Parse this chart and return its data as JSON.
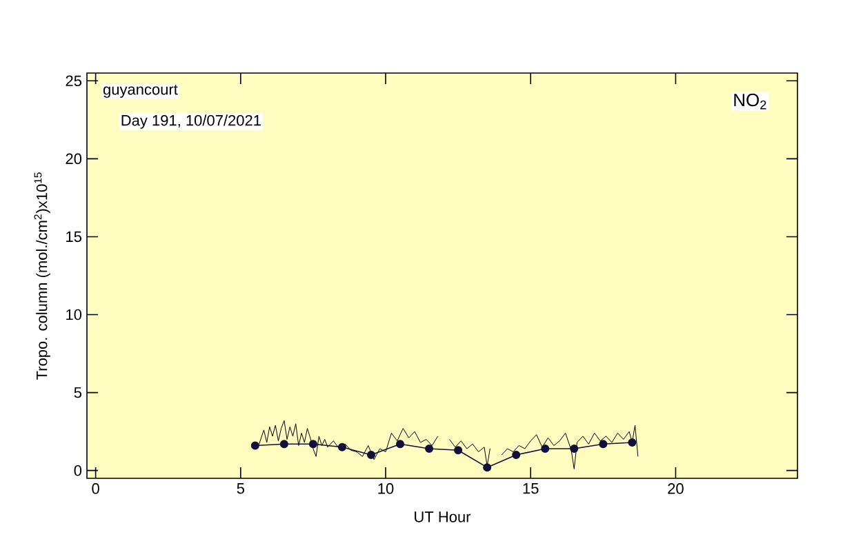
{
  "chart_data": {
    "type": "line",
    "xlabel": "UT Hour",
    "ylabel": "Tropo. column (mol./cm$^{2}$)x10$^{15}$",
    "annotations": [
      "guyancourt",
      "Day 191, 10/07/2021",
      "NO$_{2}$"
    ],
    "xlim": [
      -0.3,
      24.2
    ],
    "ylim": [
      -0.5,
      25.5
    ],
    "xticks": [
      0,
      5,
      10,
      15,
      20
    ],
    "yticks": [
      0,
      5,
      10,
      15,
      20,
      25
    ],
    "grid": false,
    "series": [
      {
        "color": "#000000",
        "marker": "none",
        "x": [
          5.6,
          5.8,
          5.9,
          6.0,
          6.1,
          6.2,
          6.3,
          6.4,
          6.5,
          6.6,
          6.7,
          6.8,
          6.9,
          7.0,
          7.1,
          7.2,
          7.3,
          7.4,
          7.5,
          7.6,
          7.7,
          7.8,
          7.9,
          8.0,
          8.2,
          8.4,
          8.6,
          8.8,
          9.0,
          9.2,
          9.4,
          9.6,
          9.8,
          10.0,
          10.2,
          10.4,
          10.6,
          10.8,
          11.0,
          11.2,
          11.4,
          11.6,
          11.8,
          11.9,
          12.2,
          12.4,
          12.6,
          12.8,
          13.0,
          13.2,
          13.4,
          13.5,
          13.6,
          13.9,
          14.0,
          14.2,
          14.4,
          14.6,
          14.8,
          15.0,
          15.2,
          15.4,
          15.6,
          15.8,
          16.0,
          16.2,
          16.4,
          16.5,
          16.6,
          16.8,
          17.0,
          17.2,
          17.4,
          17.6,
          17.8,
          18.0,
          18.2,
          18.4,
          18.5,
          18.6,
          18.7
        ],
        "values": [
          1.5,
          2.6,
          1.8,
          2.8,
          2.2,
          2.9,
          1.9,
          2.7,
          3.2,
          2.0,
          2.8,
          2.2,
          3.0,
          1.6,
          2.4,
          1.8,
          2.7,
          2.1,
          1.4,
          0.9,
          2.2,
          1.6,
          2.0,
          1.5,
          1.9,
          1.4,
          1.7,
          1.3,
          1.2,
          0.9,
          1.6,
          0.7,
          1.4,
          1.2,
          2.4,
          1.9,
          2.7,
          2.1,
          2.5,
          1.8,
          2.0,
          1.6,
          2.2,
          null,
          2.0,
          1.5,
          1.9,
          1.4,
          1.7,
          1.2,
          1.5,
          0.3,
          1.4,
          null,
          1.0,
          1.4,
          1.2,
          1.6,
          1.4,
          1.9,
          2.3,
          1.5,
          2.1,
          1.6,
          1.9,
          2.4,
          1.3,
          0.1,
          1.8,
          2.2,
          1.7,
          2.4,
          1.9,
          2.2,
          1.8,
          2.4,
          2.0,
          2.5,
          1.8,
          2.9,
          0.9
        ]
      },
      {
        "color": "#10103a",
        "marker": "circle",
        "x": [
          5.5,
          6.5,
          7.5,
          8.5,
          9.5,
          10.5,
          11.5,
          12.5,
          13.5,
          14.5,
          15.5,
          16.5,
          17.5,
          18.5
        ],
        "values": [
          1.6,
          1.7,
          1.7,
          1.5,
          1.0,
          1.7,
          1.4,
          1.3,
          0.2,
          1.0,
          1.4,
          1.4,
          1.7,
          1.8
        ]
      }
    ]
  }
}
